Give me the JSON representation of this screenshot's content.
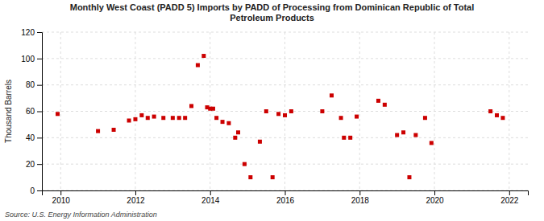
{
  "chart_data": {
    "type": "scatter",
    "title": "Monthly West Coast (PADD 5) Imports by PADD of Processing from Dominican Republic of Total\nPetroleum Products",
    "ylabel": "Thousand Barrels",
    "source": "Source: U.S. Energy Information Administration",
    "color": "#cc0000",
    "marker": "square",
    "grid": true,
    "xlim": [
      2009.5,
      2022.5
    ],
    "ylim": [
      0,
      120
    ],
    "xticks": [
      2010,
      2012,
      2014,
      2016,
      2018,
      2020,
      2022
    ],
    "yticks": [
      0,
      20,
      40,
      60,
      80,
      100,
      120
    ],
    "x": [
      2009.92,
      2011.0,
      2011.42,
      2011.83,
      2012.0,
      2012.17,
      2012.33,
      2012.5,
      2012.75,
      2013.0,
      2013.17,
      2013.33,
      2013.5,
      2013.67,
      2013.83,
      2013.92,
      2014.0,
      2014.08,
      2014.17,
      2014.33,
      2014.5,
      2014.67,
      2014.75,
      2014.92,
      2015.08,
      2015.33,
      2015.5,
      2015.67,
      2015.83,
      2016.0,
      2016.17,
      2017.0,
      2017.25,
      2017.5,
      2017.58,
      2017.75,
      2017.92,
      2018.5,
      2018.67,
      2019.0,
      2019.17,
      2019.33,
      2019.5,
      2019.75,
      2019.92,
      2021.5,
      2021.67,
      2021.83
    ],
    "values": [
      58,
      45,
      46,
      53,
      54,
      57,
      55,
      56,
      55,
      55,
      55,
      55,
      64,
      95,
      102,
      63,
      62,
      62,
      55,
      52,
      51,
      40,
      44,
      20,
      10,
      37,
      60,
      10,
      58,
      57,
      60,
      60,
      72,
      55,
      40,
      40,
      56,
      68,
      65,
      42,
      44,
      10,
      42,
      55,
      36,
      60,
      57,
      55
    ]
  }
}
